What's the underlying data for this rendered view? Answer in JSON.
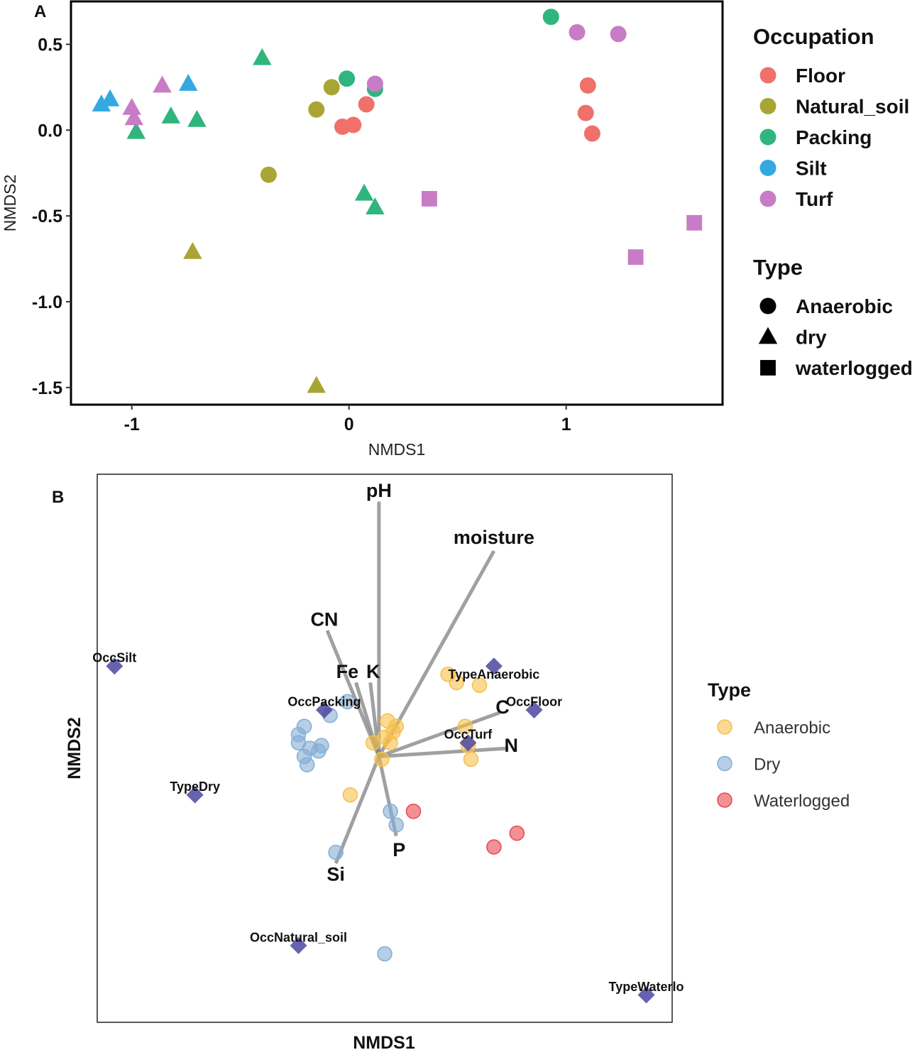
{
  "panel_a": {
    "label": "A",
    "chart_data": {
      "type": "scatter",
      "xlabel": "NMDS1",
      "ylabel": "NMDS2",
      "xlim": [
        -1.28,
        1.72
      ],
      "ylim": [
        -1.6,
        0.75
      ],
      "x_ticks": [
        -1,
        0,
        1
      ],
      "x_tick_labels": [
        "-1",
        "0",
        "1"
      ],
      "y_ticks": [
        0.5,
        0.0,
        -0.5,
        -1.0,
        -1.5
      ],
      "y_tick_labels": [
        "0.5",
        "0.0",
        "-0.5",
        "-1.0",
        "-1.5"
      ],
      "legend_occupation": {
        "title": "Occupation",
        "entries": [
          {
            "name": "Floor",
            "color": "#F0706A"
          },
          {
            "name": "Natural_soil",
            "color": "#A8A534"
          },
          {
            "name": "Packing",
            "color": "#2FB57D"
          },
          {
            "name": "Silt",
            "color": "#33A9E0"
          },
          {
            "name": "Turf",
            "color": "#C77CC5"
          }
        ]
      },
      "legend_type": {
        "title": "Type",
        "entries": [
          {
            "name": "Anaerobic",
            "shape": "circle"
          },
          {
            "name": "dry",
            "shape": "triangle"
          },
          {
            "name": "waterlogged",
            "shape": "square"
          }
        ]
      },
      "points": [
        {
          "x": -0.03,
          "y": 0.02,
          "occ": "Floor",
          "type": "Anaerobic"
        },
        {
          "x": 0.02,
          "y": 0.03,
          "occ": "Floor",
          "type": "Anaerobic"
        },
        {
          "x": 0.08,
          "y": 0.15,
          "occ": "Floor",
          "type": "Anaerobic"
        },
        {
          "x": 1.1,
          "y": 0.26,
          "occ": "Floor",
          "type": "Anaerobic"
        },
        {
          "x": 1.09,
          "y": 0.1,
          "occ": "Floor",
          "type": "Anaerobic"
        },
        {
          "x": 1.12,
          "y": -0.02,
          "occ": "Floor",
          "type": "Anaerobic"
        },
        {
          "x": -0.15,
          "y": 0.12,
          "occ": "Natural_soil",
          "type": "Anaerobic"
        },
        {
          "x": -0.08,
          "y": 0.25,
          "occ": "Natural_soil",
          "type": "Anaerobic"
        },
        {
          "x": -0.37,
          "y": -0.26,
          "occ": "Natural_soil",
          "type": "Anaerobic"
        },
        {
          "x": -0.72,
          "y": -0.71,
          "occ": "Natural_soil",
          "type": "dry"
        },
        {
          "x": -0.15,
          "y": -1.49,
          "occ": "Natural_soil",
          "type": "dry"
        },
        {
          "x": -0.01,
          "y": 0.3,
          "occ": "Packing",
          "type": "Anaerobic"
        },
        {
          "x": 0.12,
          "y": 0.24,
          "occ": "Packing",
          "type": "Anaerobic"
        },
        {
          "x": 0.93,
          "y": 0.66,
          "occ": "Packing",
          "type": "Anaerobic"
        },
        {
          "x": -0.4,
          "y": 0.42,
          "occ": "Packing",
          "type": "dry"
        },
        {
          "x": -0.82,
          "y": 0.08,
          "occ": "Packing",
          "type": "dry"
        },
        {
          "x": -0.7,
          "y": 0.06,
          "occ": "Packing",
          "type": "dry"
        },
        {
          "x": -0.98,
          "y": -0.01,
          "occ": "Packing",
          "type": "dry"
        },
        {
          "x": 0.07,
          "y": -0.37,
          "occ": "Packing",
          "type": "dry"
        },
        {
          "x": 0.12,
          "y": -0.45,
          "occ": "Packing",
          "type": "dry"
        },
        {
          "x": -1.14,
          "y": 0.15,
          "occ": "Silt",
          "type": "dry"
        },
        {
          "x": -1.1,
          "y": 0.18,
          "occ": "Silt",
          "type": "dry"
        },
        {
          "x": -0.74,
          "y": 0.27,
          "occ": "Silt",
          "type": "dry"
        },
        {
          "x": 0.12,
          "y": 0.27,
          "occ": "Turf",
          "type": "Anaerobic"
        },
        {
          "x": 1.05,
          "y": 0.57,
          "occ": "Turf",
          "type": "Anaerobic"
        },
        {
          "x": 1.24,
          "y": 0.56,
          "occ": "Turf",
          "type": "Anaerobic"
        },
        {
          "x": -0.86,
          "y": 0.26,
          "occ": "Turf",
          "type": "dry"
        },
        {
          "x": -1.0,
          "y": 0.13,
          "occ": "Turf",
          "type": "dry"
        },
        {
          "x": -0.99,
          "y": 0.07,
          "occ": "Turf",
          "type": "dry"
        },
        {
          "x": 0.37,
          "y": -0.4,
          "occ": "Turf",
          "type": "waterlogged"
        },
        {
          "x": 1.32,
          "y": -0.74,
          "occ": "Turf",
          "type": "waterlogged"
        },
        {
          "x": 1.59,
          "y": -0.54,
          "occ": "Turf",
          "type": "waterlogged"
        }
      ]
    }
  },
  "panel_b": {
    "label": "B",
    "chart_data": {
      "type": "scatter",
      "subtype": "ordination biplot",
      "xlabel": "NMDS1",
      "ylabel": "NMDS2",
      "xlim": [
        -1.0,
        1.0
      ],
      "ylim": [
        -1.0,
        1.0
      ],
      "origin": [
        -0.02,
        -0.03
      ],
      "legend": {
        "title": "Type",
        "entries": [
          {
            "name": "Anaerobic",
            "color": "#F6C04A"
          },
          {
            "name": "Dry",
            "color": "#85ADD5"
          },
          {
            "name": "Waterlogged",
            "color": "#E8484E"
          }
        ]
      },
      "vectors": [
        {
          "name": "pH",
          "x": -0.02,
          "y": 0.9,
          "label_x": -0.02,
          "label_y": 0.94,
          "size": 27
        },
        {
          "name": "moisture",
          "x": 0.38,
          "y": 0.72,
          "label_x": 0.38,
          "label_y": 0.77,
          "size": 27
        },
        {
          "name": "CN",
          "x": -0.2,
          "y": 0.43,
          "label_x": -0.21,
          "label_y": 0.47,
          "size": 27
        },
        {
          "name": "Fe",
          "x": -0.1,
          "y": 0.24,
          "label_x": -0.13,
          "label_y": 0.28,
          "size": 27
        },
        {
          "name": "K",
          "x": -0.05,
          "y": 0.24,
          "label_x": -0.04,
          "label_y": 0.28,
          "size": 27
        },
        {
          "name": "C",
          "x": 0.4,
          "y": 0.13,
          "label_x": 0.41,
          "label_y": 0.15,
          "size": 27
        },
        {
          "name": "N",
          "x": 0.43,
          "y": 0.0,
          "label_x": 0.44,
          "label_y": 0.01,
          "size": 27
        },
        {
          "name": "P",
          "x": 0.04,
          "y": -0.32,
          "label_x": 0.05,
          "label_y": -0.37,
          "size": 27
        },
        {
          "name": "Si",
          "x": -0.17,
          "y": -0.42,
          "label_x": -0.17,
          "label_y": -0.46,
          "size": 27
        }
      ],
      "centroids": [
        {
          "name": "OccSilt",
          "x": -0.94,
          "y": 0.3,
          "label_dy": 0.03
        },
        {
          "name": "OccPacking",
          "x": -0.21,
          "y": 0.14,
          "label_dy": 0.03
        },
        {
          "name": "TypeAnaerobic",
          "x": 0.38,
          "y": 0.3,
          "label_dy": -0.03
        },
        {
          "name": "OccFloor",
          "x": 0.52,
          "y": 0.14,
          "label_dy": 0.03
        },
        {
          "name": "OccTurf",
          "x": 0.29,
          "y": 0.02,
          "label_dy": 0.03
        },
        {
          "name": "TypeDry",
          "x": -0.66,
          "y": -0.17,
          "label_dy": 0.03
        },
        {
          "name": "OccNatural_soil",
          "x": -0.3,
          "y": -0.72,
          "label_dy": 0.03
        },
        {
          "name": "TypeWaterlo",
          "x": 0.91,
          "y": -0.9,
          "label_dy": 0.03
        }
      ],
      "sites": [
        {
          "x": 0.22,
          "y": 0.27,
          "type": "Anaerobic"
        },
        {
          "x": 0.25,
          "y": 0.24,
          "type": "Anaerobic"
        },
        {
          "x": 0.33,
          "y": 0.23,
          "type": "Anaerobic"
        },
        {
          "x": 0.01,
          "y": 0.1,
          "type": "Anaerobic"
        },
        {
          "x": 0.04,
          "y": 0.08,
          "type": "Anaerobic"
        },
        {
          "x": 0.03,
          "y": 0.06,
          "type": "Anaerobic"
        },
        {
          "x": 0.0,
          "y": 0.04,
          "type": "Anaerobic"
        },
        {
          "x": 0.02,
          "y": 0.02,
          "type": "Anaerobic"
        },
        {
          "x": -0.04,
          "y": 0.02,
          "type": "Anaerobic"
        },
        {
          "x": 0.28,
          "y": 0.08,
          "type": "Anaerobic"
        },
        {
          "x": 0.29,
          "y": 0.01,
          "type": "Anaerobic"
        },
        {
          "x": 0.3,
          "y": -0.04,
          "type": "Anaerobic"
        },
        {
          "x": -0.01,
          "y": -0.04,
          "type": "Anaerobic"
        },
        {
          "x": -0.12,
          "y": -0.17,
          "type": "Anaerobic"
        },
        {
          "x": -0.13,
          "y": 0.17,
          "type": "Dry"
        },
        {
          "x": -0.19,
          "y": 0.12,
          "type": "Dry"
        },
        {
          "x": -0.28,
          "y": 0.08,
          "type": "Dry"
        },
        {
          "x": -0.3,
          "y": 0.05,
          "type": "Dry"
        },
        {
          "x": -0.3,
          "y": 0.02,
          "type": "Dry"
        },
        {
          "x": -0.26,
          "y": 0.0,
          "type": "Dry"
        },
        {
          "x": -0.28,
          "y": -0.03,
          "type": "Dry"
        },
        {
          "x": -0.23,
          "y": -0.01,
          "type": "Dry"
        },
        {
          "x": -0.22,
          "y": 0.01,
          "type": "Dry"
        },
        {
          "x": -0.27,
          "y": -0.06,
          "type": "Dry"
        },
        {
          "x": 0.02,
          "y": -0.23,
          "type": "Dry"
        },
        {
          "x": 0.04,
          "y": -0.28,
          "type": "Dry"
        },
        {
          "x": -0.17,
          "y": -0.38,
          "type": "Dry"
        },
        {
          "x": 0.0,
          "y": -0.75,
          "type": "Dry"
        },
        {
          "x": 0.1,
          "y": -0.23,
          "type": "Waterlogged"
        },
        {
          "x": 0.46,
          "y": -0.31,
          "type": "Waterlogged"
        },
        {
          "x": 0.38,
          "y": -0.36,
          "type": "Waterlogged"
        }
      ]
    }
  }
}
